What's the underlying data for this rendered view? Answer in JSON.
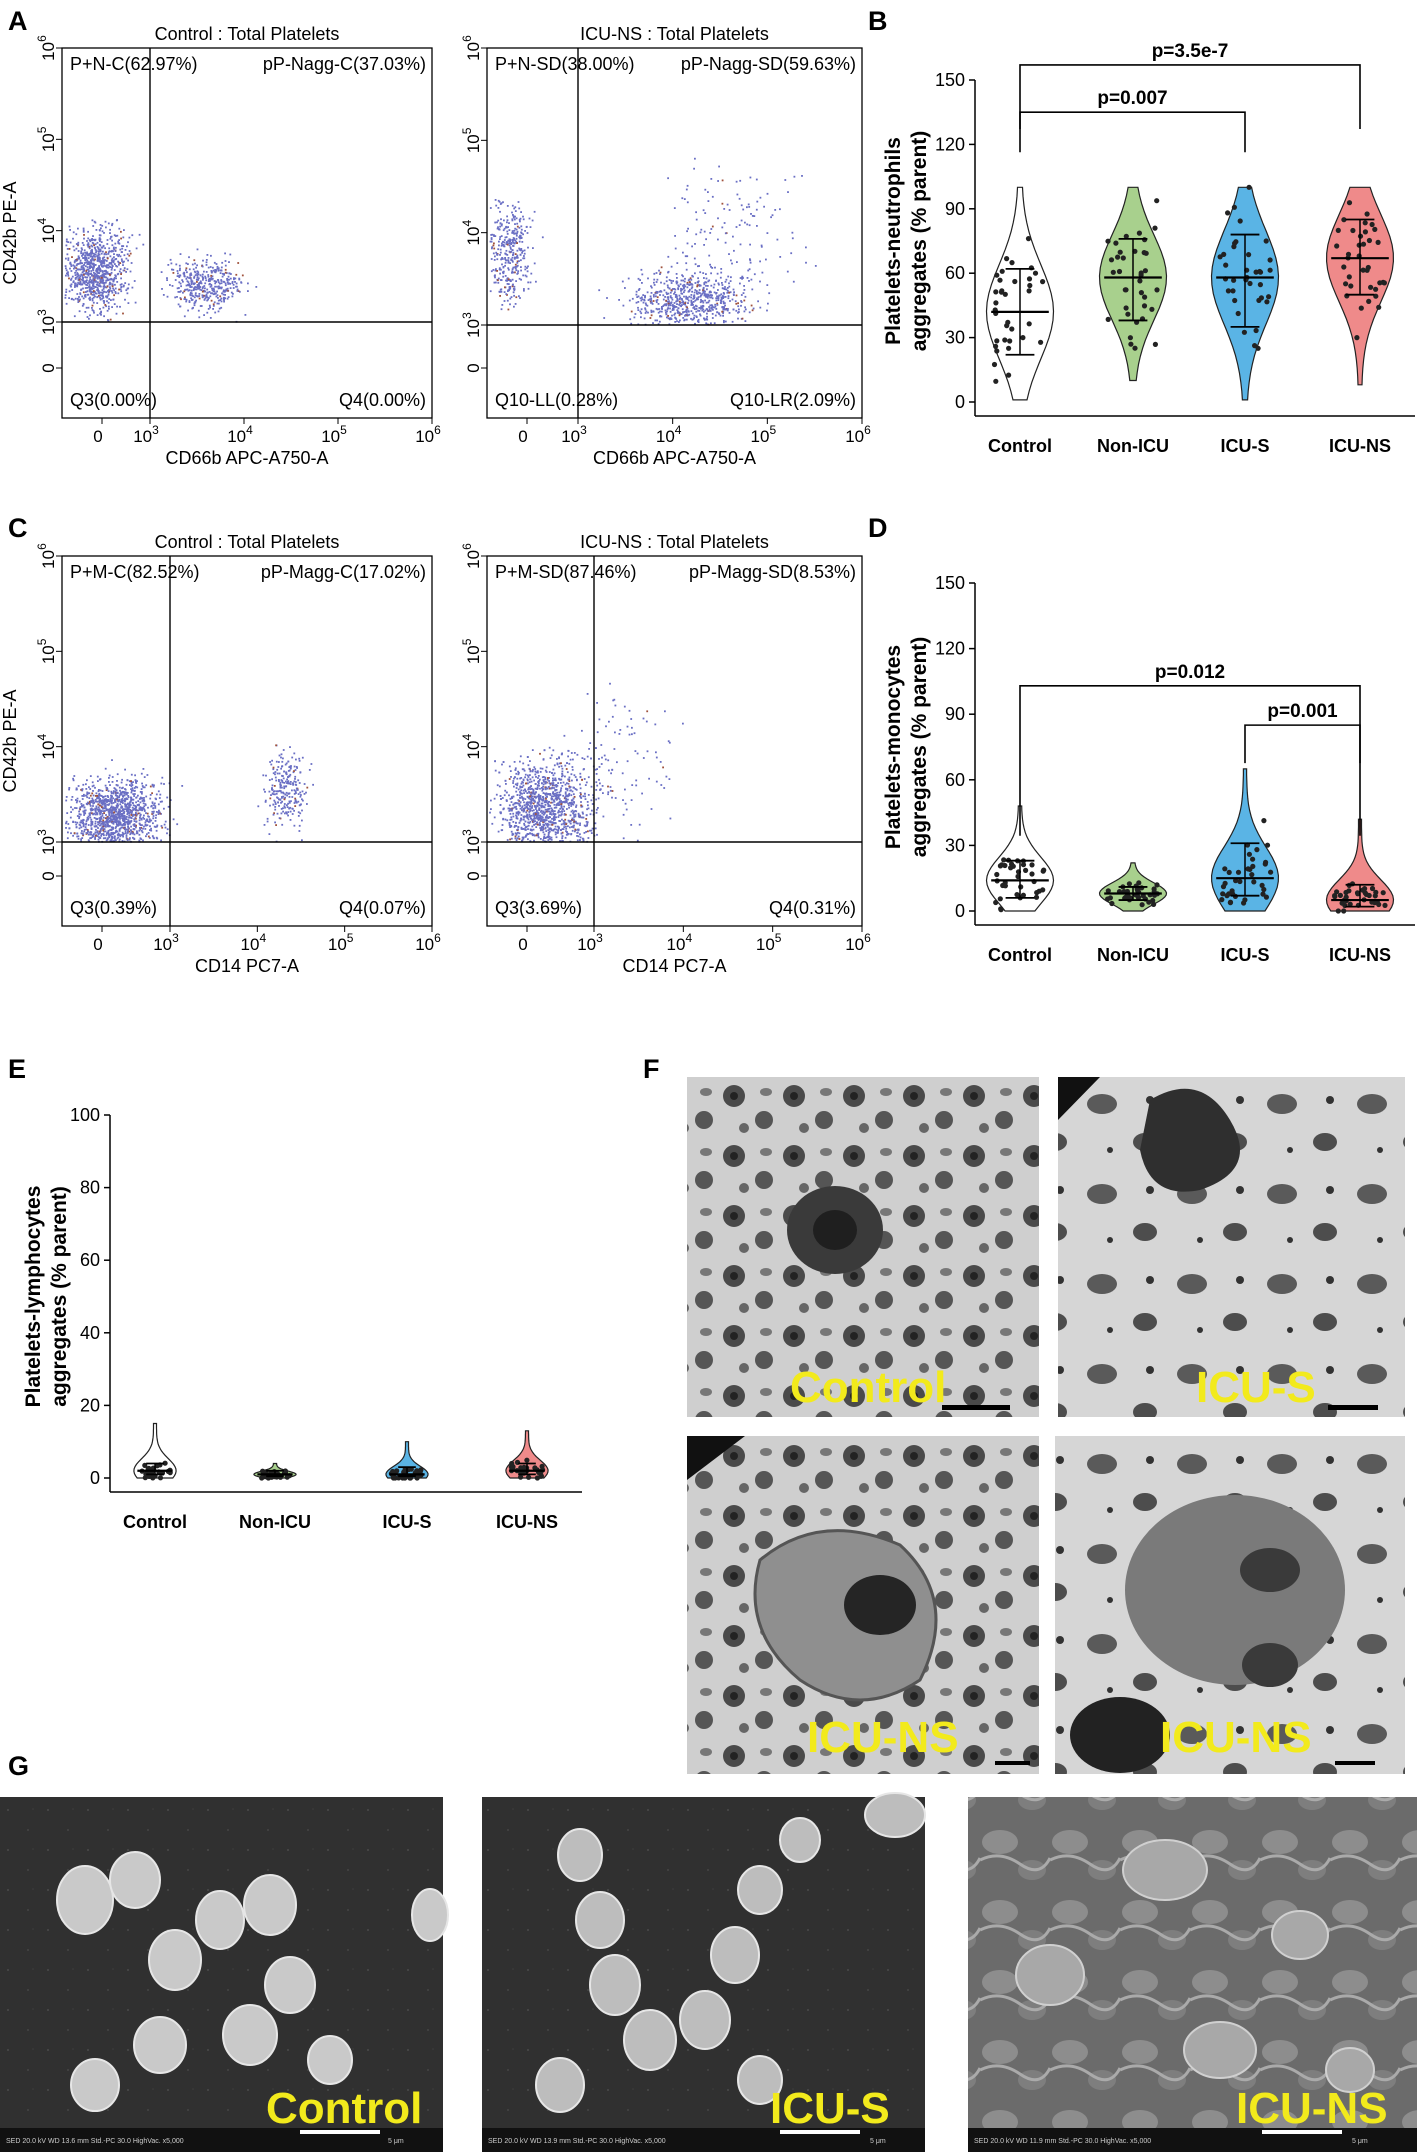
{
  "panel_letters": {
    "a": "A",
    "b": "B",
    "c": "C",
    "d": "D",
    "e": "E",
    "f": "F",
    "g": "G"
  },
  "flow": {
    "A1": {
      "title": "Control : Total Platelets",
      "q_tl": "P+N-C(62.97%)",
      "q_tr": "pP-Nagg-C(37.03%)",
      "q_bl": "Q3(0.00%)",
      "q_br": "Q4(0.00%)",
      "xlabel": "CD66b APC-A750-A",
      "ylabel": "CD42b PE-A"
    },
    "A2": {
      "title": "ICU-NS : Total Platelets",
      "q_tl": "P+N-SD(38.00%)",
      "q_tr": "pP-Nagg-SD(59.63%)",
      "q_bl": "Q10-LL(0.28%)",
      "q_br": "Q10-LR(2.09%)",
      "xlabel": "CD66b APC-A750-A",
      "ylabel": ""
    },
    "C1": {
      "title": "Control : Total Platelets",
      "q_tl": "P+M-C(82.52%)",
      "q_tr": "pP-Magg-C(17.02%)",
      "q_bl": "Q3(0.39%)",
      "q_br": "Q4(0.07%)",
      "xlabel": "CD14 PC7-A",
      "ylabel": "CD42b PE-A"
    },
    "C2": {
      "title": "ICU-NS : Total Platelets",
      "q_tl": "P+M-SD(87.46%)",
      "q_tr": "pP-Magg-SD(8.53%)",
      "q_bl": "Q3(3.69%)",
      "q_br": "Q4(0.31%)",
      "xlabel": "CD14 PC7-A",
      "ylabel": ""
    },
    "xticks": [
      "0",
      "10",
      "10",
      "10",
      "10"
    ],
    "xtick_exp": [
      "",
      "3",
      "4",
      "5",
      "6"
    ],
    "yticks": [
      "0",
      "10",
      "10",
      "10",
      "10"
    ],
    "ytick_exp": [
      "",
      "3",
      "4",
      "5",
      "6"
    ],
    "dot_color": "#6a6fc4",
    "dot_color_accent": "#a0523c"
  },
  "chart_data": [
    {
      "id": "B",
      "type": "violin",
      "ylabel_line1": "Platelets-neutrophils",
      "ylabel_line2": "aggregates (% parent)",
      "ylim": [
        0,
        150
      ],
      "yticks": [
        0,
        30,
        60,
        90,
        120,
        150
      ],
      "categories": [
        "Control",
        "Non-ICU",
        "ICU-S",
        "ICU-NS"
      ],
      "colors": [
        "#ffffff",
        "#a8d08d",
        "#5ab4e5",
        "#ef8a8a"
      ],
      "medians": [
        42,
        58,
        58,
        67
      ],
      "q1": [
        22,
        38,
        35,
        50
      ],
      "q3": [
        62,
        76,
        78,
        85
      ],
      "min": [
        1,
        10,
        1,
        8
      ],
      "max": [
        100,
        100,
        100,
        100
      ],
      "comparisons": [
        {
          "from": "Control",
          "to": "ICU-S",
          "label": "p=0.007",
          "y": 135
        },
        {
          "from": "Control",
          "to": "ICU-NS",
          "label": "p=3.5e-7",
          "y": 157
        }
      ]
    },
    {
      "id": "D",
      "type": "violin",
      "ylabel_line1": "Platelets-monocytes",
      "ylabel_line2": "aggregates (% parent)",
      "ylim": [
        0,
        150
      ],
      "yticks": [
        0,
        30,
        60,
        90,
        120,
        150
      ],
      "categories": [
        "Control",
        "Non-ICU",
        "ICU-S",
        "ICU-NS"
      ],
      "colors": [
        "#ffffff",
        "#a8d08d",
        "#5ab4e5",
        "#ef8a8a"
      ],
      "medians": [
        14,
        8,
        15,
        5
      ],
      "q1": [
        6,
        5,
        7,
        2
      ],
      "q3": [
        23,
        11,
        31,
        12
      ],
      "min": [
        0,
        0,
        0,
        0
      ],
      "max": [
        48,
        22,
        65,
        42
      ],
      "comparisons": [
        {
          "from": "Control",
          "to": "ICU-NS",
          "label": "p=0.012",
          "y": 103
        },
        {
          "from": "ICU-S",
          "to": "ICU-NS",
          "label": "p=0.001",
          "y": 85
        }
      ]
    },
    {
      "id": "E",
      "type": "violin",
      "ylabel_line1": "Platelets-lymphocytes",
      "ylabel_line2": "aggregates (% parent)",
      "ylim": [
        0,
        100
      ],
      "yticks": [
        0,
        20,
        40,
        60,
        80,
        100
      ],
      "categories": [
        "Control",
        "Non-ICU",
        "ICU-S",
        "ICU-NS"
      ],
      "colors": [
        "#ffffff",
        "#a8d08d",
        "#5ab4e5",
        "#ef8a8a"
      ],
      "medians": [
        2,
        1,
        1,
        2
      ],
      "q1": [
        1,
        0.5,
        0.5,
        1
      ],
      "q3": [
        4,
        2,
        3,
        4
      ],
      "min": [
        0,
        0,
        0,
        0
      ],
      "max": [
        15,
        4,
        10,
        13
      ],
      "comparisons": []
    }
  ],
  "em_labels": {
    "f_tl": "Control",
    "f_tr": "ICU-S",
    "f_bl": "ICU-NS",
    "f_br": "ICU-NS",
    "g_1": "Control",
    "g_2": "ICU-S",
    "g_3": "ICU-NS"
  },
  "sem_footer": {
    "g_1": "SED   20.0 kV   WD 13.6 mm   Std.-PC 30.0   HighVac.   x5,000",
    "g_2": "SED   20.0 kV   WD 13.9 mm   Std.-PC 30.0   HighVac.   x5,000",
    "g_3": "SED   20.0 kV   WD 11.9 mm   Std.-PC 30.0   HighVac.   x5,000",
    "scale": "5 μm"
  }
}
